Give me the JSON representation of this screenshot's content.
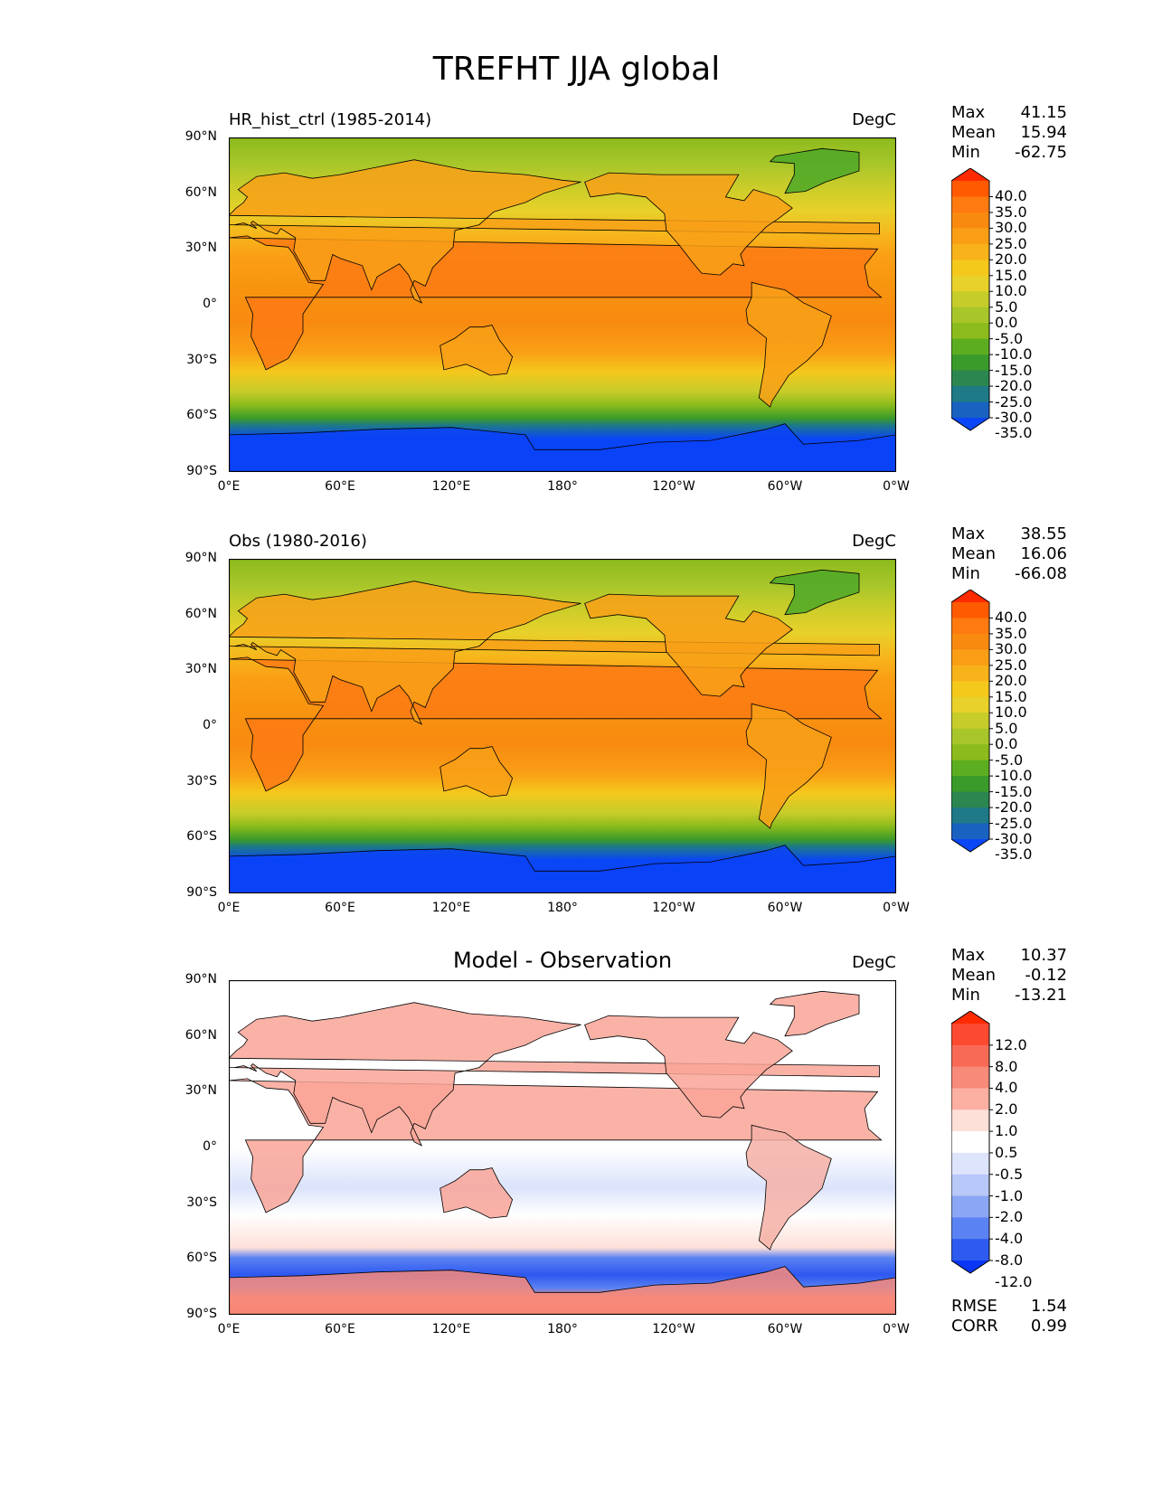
{
  "figure_title": "TREFHT JJA global",
  "units": "DegC",
  "lat_ticks": [
    "90°N",
    "60°N",
    "30°N",
    "0°",
    "30°S",
    "60°S",
    "90°S"
  ],
  "lon_ticks": [
    "0°E",
    "60°E",
    "120°E",
    "180°",
    "120°W",
    "60°W",
    "0°W"
  ],
  "panels": [
    {
      "title": "HR_hist_ctrl (1985-2014)",
      "units": "DegC",
      "stats": {
        "max_label": "Max",
        "max": "41.15",
        "mean_label": "Mean",
        "mean": "15.94",
        "min_label": "Min",
        "min": "-62.75"
      },
      "colorbar": {
        "labels": [
          "40.0",
          "35.0",
          "30.0",
          "25.0",
          "20.0",
          "15.0",
          "10.0",
          "5.0",
          "0.0",
          "-5.0",
          "-10.0",
          "-15.0",
          "-20.0",
          "-25.0",
          "-30.0",
          "-35.0"
        ],
        "colors": [
          "#ff2a00",
          "#ff5a00",
          "#ff7a10",
          "#f88a10",
          "#fa9e16",
          "#f8b21a",
          "#f5c81c",
          "#e8d12a",
          "#c6cc2a",
          "#a8c62a",
          "#8bbb1c",
          "#5cae20",
          "#3a9a2a",
          "#2c8650",
          "#1e7a86",
          "#1a62c0",
          "#0a46f5"
        ]
      },
      "map": {
        "top_color": "#8cbb1d",
        "mid_color": "#f8940f",
        "south_color": "#0a42f8",
        "mid_band_color": "#f7a51a"
      }
    },
    {
      "title": "Obs (1980-2016)",
      "units": "DegC",
      "stats": {
        "max_label": "Max",
        "max": "38.55",
        "mean_label": "Mean",
        "mean": "16.06",
        "min_label": "Min",
        "min": "-66.08"
      },
      "colorbar": {
        "labels": [
          "40.0",
          "35.0",
          "30.0",
          "25.0",
          "20.0",
          "15.0",
          "10.0",
          "5.0",
          "0.0",
          "-5.0",
          "-10.0",
          "-15.0",
          "-20.0",
          "-25.0",
          "-30.0",
          "-35.0"
        ],
        "colors": [
          "#ff2a00",
          "#ff5a00",
          "#ff7a10",
          "#f88a10",
          "#fa9e16",
          "#f8b21a",
          "#f5c81c",
          "#e8d12a",
          "#c6cc2a",
          "#a8c62a",
          "#8bbb1c",
          "#5cae20",
          "#3a9a2a",
          "#2c8650",
          "#1e7a86",
          "#1a62c0",
          "#0a46f5"
        ]
      },
      "map": {
        "top_color": "#8cbb1d",
        "mid_color": "#f8940f",
        "south_color": "#0a42f8",
        "mid_band_color": "#f7a51a"
      }
    },
    {
      "title": "Model - Observation",
      "units": "DegC",
      "stats": {
        "max_label": "Max",
        "max": "10.37",
        "mean_label": "Mean",
        "mean": "-0.12",
        "min_label": "Min",
        "min": "-13.21"
      },
      "colorbar": {
        "labels": [
          "12.0",
          "8.0",
          "4.0",
          "2.0",
          "1.0",
          "0.5",
          "-0.5",
          "-1.0",
          "-2.0",
          "-4.0",
          "-8.0",
          "-12.0"
        ],
        "colors": [
          "#ff2a00",
          "#fb4a30",
          "#f86a55",
          "#f88a7a",
          "#fbb0a2",
          "#fde0d8",
          "#ffffff",
          "#dde4fb",
          "#b8c8f8",
          "#8aa6f4",
          "#5a82f2",
          "#2e5af0",
          "#0a36f5"
        ]
      },
      "map": {
        "top_color": "#ffffff",
        "mid_color": "#ffffff",
        "south_color": "#2e58f0",
        "mid_band_color": "#dbe3fb"
      },
      "extra": {
        "rmse_label": "RMSE",
        "rmse": "1.54",
        "corr_label": "CORR",
        "corr": "0.99"
      }
    }
  ]
}
